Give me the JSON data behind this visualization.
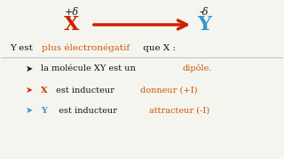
{
  "bg_color": "#f5f5f0",
  "x_label": "X",
  "y_label": "Y",
  "x_color": "#cc2200",
  "y_color": "#3399cc",
  "arrow_color": "#cc2200",
  "delta_plus": "+δ",
  "delta_minus": "-δ",
  "line1_black": "Y est ",
  "line1_red": "plus électronégatif",
  "line1_end": " que X :",
  "bullet1_black": " la molécule XY est un ",
  "bullet1_red": "dipôle.",
  "bullet2_red": "X",
  "bullet2_black": " est inducteur ",
  "bullet2_orange": "donneur (+I)",
  "bullet3_blue": "Y",
  "bullet3_black": "  est inducteur ",
  "bullet3_orange": "attracteur (-I)",
  "arrow_bullet_color_red": "#cc3300",
  "arrow_bullet_color_blue": "#3399cc",
  "orange_color": "#cc5500",
  "text_color": "#111111"
}
